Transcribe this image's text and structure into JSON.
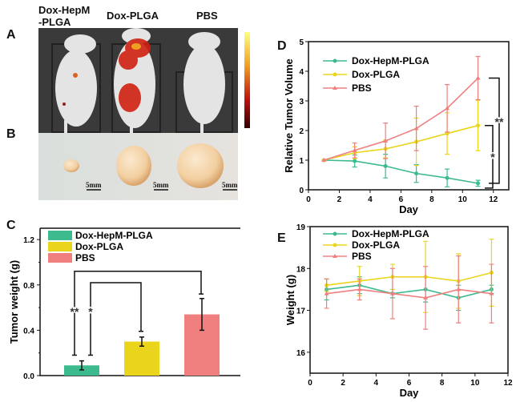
{
  "panel_labels": {
    "a": "A",
    "b": "B",
    "c": "C",
    "d": "D",
    "e": "E"
  },
  "photo_columns": [
    "Dox-HepM",
    "-PLGA",
    "Dox-PLGA",
    "PBS"
  ],
  "scale_bar_label": "5mm",
  "colors": {
    "Dox-HepM-PLGA": "#3dbb8f",
    "Dox-PLGA": "#ead51c",
    "PBS": "#f08080"
  },
  "chart_data": [
    {
      "panel": "C",
      "type": "bar",
      "categories": [
        "Dox-HepM-PLGA",
        "Dox-PLGA",
        "PBS"
      ],
      "values": [
        0.09,
        0.3,
        0.54
      ],
      "errors": [
        0.04,
        0.04,
        0.14
      ],
      "legend": [
        "Dox-HepM-PLGA",
        "Dox-PLGA",
        "PBS"
      ],
      "legend_placement": "top-left",
      "ylabel": "Tumor weight (g)",
      "xlabel": "",
      "ylim": [
        0,
        1.3
      ],
      "yticks": [
        "0.0",
        "0.4",
        "0.8",
        "1.2"
      ],
      "significance": [
        {
          "between": [
            "Dox-HepM-PLGA",
            "PBS"
          ],
          "label": "**"
        },
        {
          "between": [
            "Dox-HepM-PLGA",
            "Dox-PLGA"
          ],
          "label": "*"
        }
      ]
    },
    {
      "panel": "D",
      "type": "line",
      "xlabel": "Day",
      "ylabel": "Relative Tumor Volume",
      "xlim": [
        0,
        13
      ],
      "ylim": [
        0,
        5
      ],
      "xticks": [
        "0",
        "2",
        "4",
        "6",
        "8",
        "10",
        "12"
      ],
      "yticks": [
        "0",
        "1",
        "2",
        "3",
        "4",
        "5"
      ],
      "legend_placement": "top-left",
      "x": [
        1,
        3,
        5,
        7,
        9,
        11
      ],
      "series": [
        {
          "name": "Dox-HepM-PLGA",
          "marker": "circle",
          "values": [
            1,
            0.97,
            0.8,
            0.55,
            0.4,
            0.22
          ],
          "errors": [
            0,
            0.2,
            0.4,
            0.3,
            0.3,
            0.1
          ]
        },
        {
          "name": "Dox-PLGA",
          "marker": "circle",
          "values": [
            1,
            1.25,
            1.38,
            1.62,
            1.9,
            2.17
          ],
          "errors": [
            0,
            0.2,
            0.3,
            0.8,
            0.7,
            0.85
          ]
        },
        {
          "name": "PBS",
          "marker": "triangle",
          "values": [
            1,
            1.33,
            1.65,
            2.07,
            2.75,
            3.77
          ],
          "errors": [
            0,
            0.25,
            0.6,
            0.75,
            0.8,
            0.73
          ]
        }
      ],
      "significance": [
        {
          "between": [
            "PBS",
            "Dox-HepM-PLGA"
          ],
          "label": "**"
        },
        {
          "between": [
            "Dox-PLGA",
            "Dox-HepM-PLGA"
          ],
          "label": "*"
        }
      ]
    },
    {
      "panel": "E",
      "type": "line",
      "xlabel": "Day",
      "ylabel": "Weight (g)",
      "xlim": [
        0,
        12
      ],
      "ylim": [
        15.5,
        19
      ],
      "xticks": [
        "0",
        "2",
        "4",
        "6",
        "8",
        "10",
        "12"
      ],
      "yticks": [
        "16",
        "17",
        "18",
        "19"
      ],
      "legend_placement": "top-left",
      "x": [
        1,
        3,
        5,
        7,
        9,
        11
      ],
      "series": [
        {
          "name": "Dox-HepM-PLGA",
          "marker": "circle",
          "values": [
            17.5,
            17.6,
            17.4,
            17.5,
            17.3,
            17.5
          ],
          "errors": [
            0.25,
            0.2,
            0.1,
            0.3,
            0.3,
            0.1
          ]
        },
        {
          "name": "Dox-PLGA",
          "marker": "circle",
          "values": [
            17.6,
            17.7,
            17.8,
            17.8,
            17.7,
            17.9
          ],
          "errors": [
            0.15,
            0.35,
            0.3,
            0.85,
            0.65,
            0.8
          ]
        },
        {
          "name": "PBS",
          "marker": "triangle",
          "values": [
            17.4,
            17.5,
            17.4,
            17.3,
            17.5,
            17.4
          ],
          "errors": [
            0.35,
            0.25,
            0.6,
            0.75,
            0.8,
            0.7
          ]
        }
      ]
    }
  ]
}
